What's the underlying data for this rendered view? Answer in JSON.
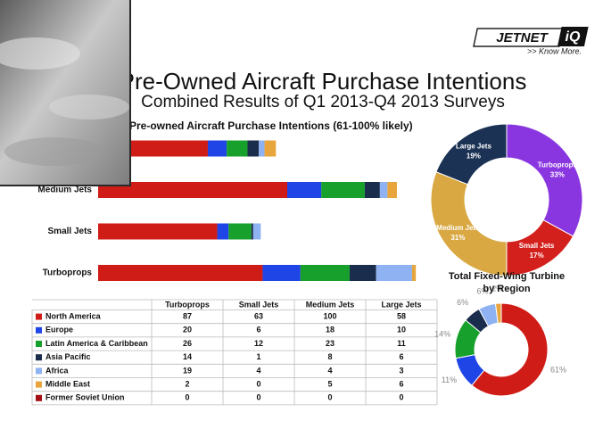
{
  "logo": {
    "brand": "JETNET",
    "mark": "iQ",
    "tagline": ">> Know More."
  },
  "title": "Pre-Owned Aircraft Purchase Intentions",
  "subtitle": "Combined Results of Q1 2013-Q4 2013 Surveys",
  "chart_data": [
    {
      "type": "bar",
      "orientation": "horizontal",
      "stacked": true,
      "title": "Pre-owned Aircraft Purchase Intentions (61-100% likely)",
      "categories": [
        "Turboprops",
        "Small Jets",
        "Medium Jets",
        "Large Jets"
      ],
      "series": [
        {
          "name": "North America",
          "color": "#d01c17",
          "values": [
            87,
            63,
            100,
            58
          ]
        },
        {
          "name": "Europe",
          "color": "#1f45e6",
          "values": [
            20,
            6,
            18,
            10
          ]
        },
        {
          "name": "Latin America & Caribbean",
          "color": "#17a02c",
          "values": [
            26,
            12,
            23,
            11
          ]
        },
        {
          "name": "Asia Pacific",
          "color": "#1b2d4c",
          "values": [
            14,
            1,
            8,
            6
          ]
        },
        {
          "name": "Africa",
          "color": "#8fb3f2",
          "values": [
            19,
            4,
            4,
            3
          ]
        },
        {
          "name": "Middle East",
          "color": "#e8a53c",
          "values": [
            2,
            0,
            5,
            6
          ]
        },
        {
          "name": "Former Soviet Union",
          "color": "#a30f12",
          "values": [
            0,
            0,
            0,
            0
          ]
        }
      ]
    },
    {
      "type": "donut",
      "categories": [
        "Turboprops",
        "Small Jets",
        "Medium Jets",
        "Large Jets"
      ],
      "values": [
        33,
        17,
        31,
        19
      ],
      "value_labels": [
        "33%",
        "17%",
        "31%",
        "19%"
      ],
      "colors": [
        "#8a36e0",
        "#d4201c",
        "#d9a842",
        "#1b3254"
      ]
    },
    {
      "type": "donut",
      "title": "Total Fixed-Wing Turbine by Region",
      "values": [
        61,
        11,
        14,
        6,
        6,
        2
      ],
      "value_labels": [
        "61%",
        "11%",
        "14%",
        "6%",
        "6%",
        "2%"
      ],
      "colors": [
        "#d01c17",
        "#1f45e6",
        "#17a02c",
        "#1b2d4c",
        "#8fb3f2",
        "#e8a53c"
      ]
    }
  ]
}
